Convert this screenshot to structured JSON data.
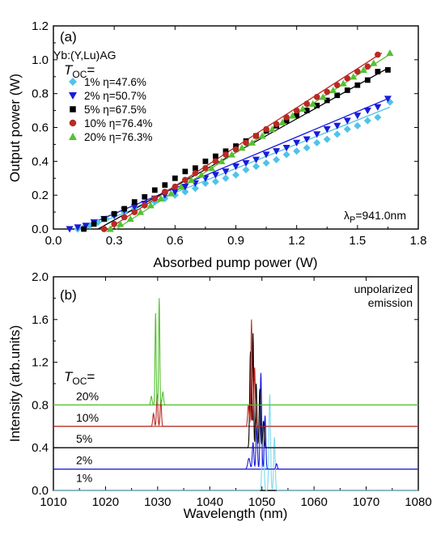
{
  "chart_data": [
    {
      "type": "scatter",
      "panel_label": "(a)",
      "material": "Yb:(Y,Lu)AG",
      "legend_header": {
        "main": "T",
        "sub": "OC",
        "tail": "="
      },
      "xlabel": "Absorbed pump power (W)",
      "ylabel": "Output power (W)",
      "xlim": [
        0.0,
        1.8
      ],
      "ylim": [
        0.0,
        1.2
      ],
      "xticks": [
        "0.0",
        "0.3",
        "0.6",
        "0.9",
        "1.2",
        "1.5",
        "1.8"
      ],
      "yticks": [
        "0.0",
        "0.2",
        "0.4",
        "0.6",
        "0.8",
        "1.0",
        "1.2"
      ],
      "pump_label": {
        "main": "λ",
        "sub": "P",
        "tail": "=941.0nm"
      },
      "legend_placement": "top-left",
      "series": [
        {
          "name": "1% η=47.6%",
          "marker": "diamond",
          "color": "#4fc3e8",
          "x": [
            0.12,
            0.15,
            0.18,
            0.22,
            0.26,
            0.3,
            0.35,
            0.4,
            0.45,
            0.5,
            0.55,
            0.6,
            0.65,
            0.7,
            0.75,
            0.8,
            0.85,
            0.9,
            0.95,
            1.0,
            1.05,
            1.1,
            1.15,
            1.2,
            1.25,
            1.3,
            1.35,
            1.4,
            1.45,
            1.5,
            1.55,
            1.6,
            1.66
          ],
          "y": [
            0.0,
            0.01,
            0.02,
            0.04,
            0.06,
            0.08,
            0.1,
            0.12,
            0.14,
            0.16,
            0.18,
            0.2,
            0.22,
            0.24,
            0.27,
            0.28,
            0.3,
            0.32,
            0.35,
            0.37,
            0.39,
            0.41,
            0.44,
            0.46,
            0.48,
            0.51,
            0.53,
            0.56,
            0.59,
            0.61,
            0.64,
            0.66,
            0.75
          ],
          "fit": [
            [
              0.15,
              0.0
            ],
            [
              1.66,
              0.72
            ]
          ]
        },
        {
          "name": "2% η=50.7%",
          "marker": "triangle-down",
          "color": "#1a1adb",
          "x": [
            0.08,
            0.12,
            0.16,
            0.2,
            0.25,
            0.3,
            0.35,
            0.4,
            0.45,
            0.5,
            0.55,
            0.6,
            0.65,
            0.7,
            0.75,
            0.8,
            0.85,
            0.9,
            0.95,
            1.0,
            1.05,
            1.1,
            1.15,
            1.2,
            1.25,
            1.3,
            1.35,
            1.4,
            1.45,
            1.5,
            1.55,
            1.6,
            1.65
          ],
          "y": [
            0.0,
            0.01,
            0.02,
            0.04,
            0.06,
            0.08,
            0.11,
            0.13,
            0.15,
            0.18,
            0.2,
            0.22,
            0.25,
            0.27,
            0.3,
            0.32,
            0.34,
            0.37,
            0.39,
            0.41,
            0.44,
            0.46,
            0.48,
            0.51,
            0.53,
            0.56,
            0.59,
            0.61,
            0.64,
            0.67,
            0.7,
            0.72,
            0.77
          ],
          "fit": [
            [
              0.12,
              0.0
            ],
            [
              1.65,
              0.77
            ]
          ]
        },
        {
          "name": "5% η=67.5%",
          "marker": "square",
          "color": "#000000",
          "x": [
            0.15,
            0.2,
            0.25,
            0.3,
            0.35,
            0.4,
            0.45,
            0.5,
            0.55,
            0.6,
            0.65,
            0.7,
            0.75,
            0.8,
            0.85,
            0.9,
            0.95,
            1.0,
            1.05,
            1.1,
            1.15,
            1.2,
            1.25,
            1.3,
            1.35,
            1.4,
            1.45,
            1.5,
            1.55,
            1.6,
            1.65
          ],
          "y": [
            0.0,
            0.03,
            0.06,
            0.09,
            0.12,
            0.16,
            0.19,
            0.23,
            0.26,
            0.3,
            0.34,
            0.36,
            0.4,
            0.43,
            0.46,
            0.49,
            0.52,
            0.55,
            0.58,
            0.61,
            0.64,
            0.67,
            0.7,
            0.73,
            0.76,
            0.79,
            0.82,
            0.85,
            0.88,
            0.93,
            0.94
          ],
          "fit": [
            [
              0.22,
              0.0
            ],
            [
              1.65,
              0.95
            ]
          ]
        },
        {
          "name": "10% η=76.4%",
          "marker": "circle",
          "color": "#b82a24",
          "x": [
            0.25,
            0.3,
            0.35,
            0.4,
            0.45,
            0.5,
            0.55,
            0.6,
            0.65,
            0.7,
            0.75,
            0.8,
            0.85,
            0.9,
            0.95,
            1.0,
            1.05,
            1.1,
            1.15,
            1.2,
            1.25,
            1.3,
            1.35,
            1.4,
            1.45,
            1.5,
            1.55,
            1.6
          ],
          "y": [
            0.0,
            0.03,
            0.07,
            0.1,
            0.14,
            0.18,
            0.22,
            0.25,
            0.29,
            0.33,
            0.36,
            0.4,
            0.44,
            0.47,
            0.51,
            0.55,
            0.59,
            0.62,
            0.66,
            0.7,
            0.74,
            0.78,
            0.81,
            0.85,
            0.89,
            0.93,
            0.96,
            1.03
          ],
          "fit": [
            [
              0.27,
              0.0
            ],
            [
              1.62,
              1.04
            ]
          ]
        },
        {
          "name": "20% η=76.3%",
          "marker": "triangle-up",
          "color": "#55c033",
          "x": [
            0.28,
            0.33,
            0.38,
            0.43,
            0.48,
            0.53,
            0.58,
            0.63,
            0.68,
            0.73,
            0.78,
            0.83,
            0.88,
            0.93,
            0.98,
            1.03,
            1.08,
            1.13,
            1.18,
            1.23,
            1.28,
            1.33,
            1.38,
            1.43,
            1.48,
            1.53,
            1.58,
            1.66
          ],
          "y": [
            0.0,
            0.03,
            0.06,
            0.1,
            0.14,
            0.18,
            0.21,
            0.25,
            0.29,
            0.32,
            0.36,
            0.4,
            0.44,
            0.48,
            0.51,
            0.55,
            0.59,
            0.63,
            0.67,
            0.71,
            0.74,
            0.78,
            0.82,
            0.86,
            0.9,
            0.94,
            0.98,
            1.04
          ],
          "fit": [
            [
              0.31,
              0.0
            ],
            [
              1.67,
              1.04
            ]
          ]
        }
      ]
    },
    {
      "type": "line",
      "panel_label": "(b)",
      "xlabel": "Wavelength (nm)",
      "ylabel": "Intensity (arb.units)",
      "xlim": [
        1010,
        1080
      ],
      "ylim": [
        0.0,
        2.0
      ],
      "xticks": [
        "1010",
        "1020",
        "1030",
        "1040",
        "1050",
        "1060",
        "1070",
        "1080"
      ],
      "yticks": [
        "0.0",
        "0.4",
        "0.8",
        "1.2",
        "1.6",
        "2.0"
      ],
      "annotation": [
        "unpolarized",
        "emission"
      ],
      "legend_header": {
        "main": "T",
        "sub": "OC",
        "tail": "="
      },
      "series": [
        {
          "name": "1%",
          "offset": 0.0,
          "color": "#7fd8ec",
          "peaks": [
            [
              1050.2,
              0.6,
              0.25
            ],
            [
              1051.5,
              0.9,
              0.22
            ],
            [
              1052.4,
              0.5,
              0.2
            ]
          ]
        },
        {
          "name": "2%",
          "offset": 0.2,
          "color": "#1a1adb",
          "peaks": [
            [
              1047.5,
              0.1,
              0.3
            ],
            [
              1048.3,
              0.25,
              0.2
            ],
            [
              1049.0,
              0.4,
              0.2
            ],
            [
              1049.8,
              0.9,
              0.2
            ],
            [
              1050.6,
              0.5,
              0.2
            ],
            [
              1052.8,
              0.05,
              0.2
            ]
          ]
        },
        {
          "name": "5%",
          "offset": 0.4,
          "color": "#000000",
          "peaks": [
            [
              1047.8,
              0.9,
              0.2
            ],
            [
              1048.3,
              1.07,
              0.15
            ],
            [
              1048.9,
              0.6,
              0.18
            ],
            [
              1049.6,
              0.55,
              0.2
            ],
            [
              1050.3,
              0.25,
              0.2
            ]
          ]
        },
        {
          "name": "10%",
          "offset": 0.6,
          "color": "#b82a24",
          "peaks": [
            [
              1029.2,
              0.12,
              0.2
            ],
            [
              1029.9,
              0.3,
              0.18
            ],
            [
              1030.6,
              0.25,
              0.18
            ],
            [
              1047.4,
              0.2,
              0.2
            ],
            [
              1048.0,
              1.0,
              0.15
            ],
            [
              1048.6,
              0.55,
              0.18
            ]
          ]
        },
        {
          "name": "20%",
          "offset": 0.8,
          "color": "#55c033",
          "peaks": [
            [
              1028.8,
              0.08,
              0.2
            ],
            [
              1029.6,
              0.86,
              0.15
            ],
            [
              1030.3,
              1.0,
              0.15
            ],
            [
              1031.0,
              0.12,
              0.2
            ]
          ]
        }
      ]
    }
  ]
}
